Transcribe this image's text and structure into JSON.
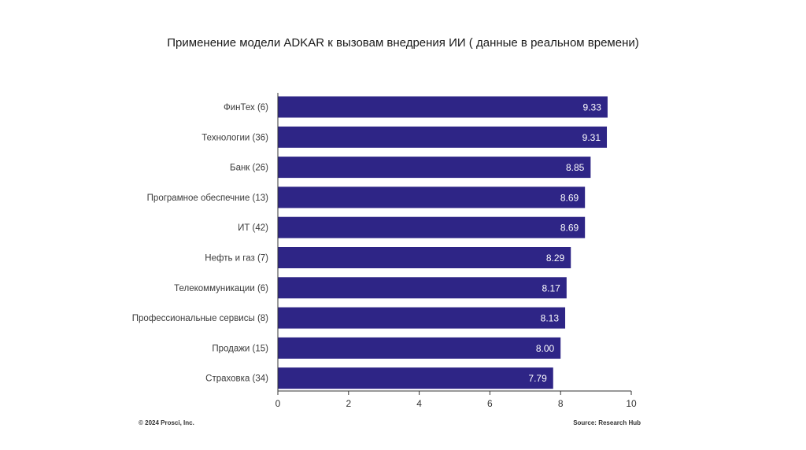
{
  "chart_data": {
    "type": "bar",
    "orientation": "horizontal",
    "title": "Применение модели ADKAR к вызовам внедрения ИИ ( данные в реальном времени)",
    "categories": [
      "ФинТех (6)",
      "Технологии (36)",
      "Банк (26)",
      "Програмное обеспечние (13)",
      "ИТ (42)",
      "Нефть и газ (7)",
      "Телекоммуникации (6)",
      "Профессиональные сервисы (8)",
      "Продажи (15)",
      "Страховка (34)"
    ],
    "values": [
      9.33,
      9.31,
      8.85,
      8.69,
      8.69,
      8.29,
      8.17,
      8.13,
      8.0,
      7.79
    ],
    "value_labels": [
      "9.33",
      "9.31",
      "8.85",
      "8.69",
      "8.69",
      "8.29",
      "8.17",
      "8.13",
      "8.00",
      "7.79"
    ],
    "xlim": [
      0,
      10
    ],
    "xticks": [
      0,
      2,
      4,
      6,
      8,
      10
    ],
    "grid": false,
    "bar_color": "#2e2586",
    "value_label_color": "#ffffff"
  },
  "footer": {
    "copyright": "© 2024 Prosci, Inc.",
    "source": "Source: Research Hub"
  }
}
